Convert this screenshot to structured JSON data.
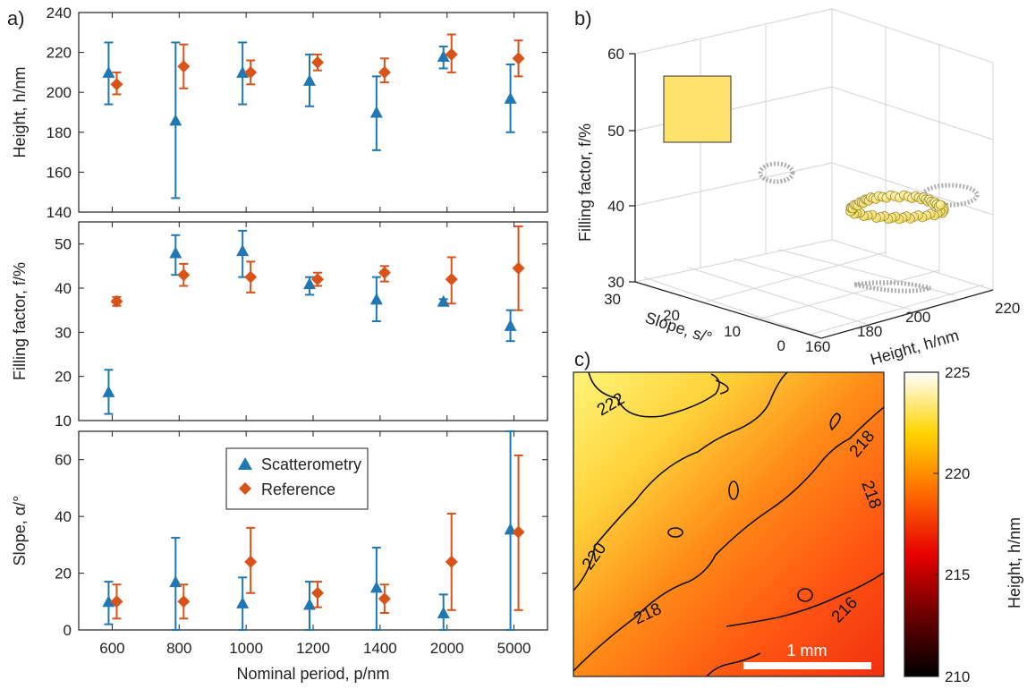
{
  "panel_labels": {
    "a": "a)",
    "b": "b)",
    "c": "c)"
  },
  "colors": {
    "scatterometry": "#1f77b4",
    "reference": "#d95319",
    "ghost": "#b0b0b0",
    "ball_fill": "#ffe680",
    "ball_edge": "#8a7a20"
  },
  "chart_data": [
    {
      "type": "scatter",
      "title": "",
      "ylabel": "Height, h/nm",
      "ylim": [
        140,
        240
      ],
      "yticks": [
        140,
        160,
        180,
        200,
        220,
        240
      ],
      "categories": [
        "600",
        "800",
        "1000",
        "1200",
        "1400",
        "2000",
        "5000"
      ],
      "series": [
        {
          "name": "Scatterometry",
          "values": [
            210,
            186,
            210,
            206,
            190,
            218,
            197
          ],
          "err_low": [
            194,
            147,
            194,
            193,
            171,
            212,
            180
          ],
          "err_high": [
            225,
            225,
            225,
            219,
            208,
            223,
            214
          ]
        },
        {
          "name": "Reference",
          "values": [
            204,
            213,
            210,
            215,
            210,
            219,
            217
          ],
          "err_low": [
            199,
            202,
            204,
            211,
            205,
            210,
            208
          ],
          "err_high": [
            210,
            224,
            216,
            219,
            217,
            229,
            226
          ]
        }
      ]
    },
    {
      "type": "scatter",
      "title": "",
      "ylabel": "Filling factor, f/%",
      "ylim": [
        10,
        55
      ],
      "yticks": [
        10,
        20,
        30,
        40,
        50
      ],
      "categories": [
        "600",
        "800",
        "1000",
        "1200",
        "1400",
        "2000",
        "5000"
      ],
      "series": [
        {
          "name": "Scatterometry",
          "values": [
            16.5,
            48,
            48.5,
            41,
            37.5,
            37,
            31.5
          ],
          "err_low": [
            11.5,
            43,
            42.5,
            38.5,
            32.5,
            36.5,
            28
          ],
          "err_high": [
            21.5,
            52,
            53,
            42.5,
            42.5,
            37.5,
            35
          ]
        },
        {
          "name": "Reference",
          "values": [
            37,
            43,
            42.5,
            42,
            43.5,
            42,
            44.5
          ],
          "err_low": [
            36,
            40.5,
            39,
            40.5,
            41.5,
            36.5,
            35
          ],
          "err_high": [
            38,
            45.5,
            46,
            43.5,
            45,
            47,
            54
          ]
        }
      ]
    },
    {
      "type": "scatter",
      "title": "",
      "xlabel": "Nominal period, p/nm",
      "ylabel": "Slope, α/°",
      "ylim": [
        0,
        70
      ],
      "yticks": [
        0,
        20,
        40,
        60
      ],
      "categories": [
        "600",
        "800",
        "1000",
        "1200",
        "1400",
        "2000",
        "5000"
      ],
      "legend_position": "top-center",
      "series": [
        {
          "name": "Scatterometry",
          "marker": "triangle",
          "values": [
            10,
            17,
            9.5,
            9,
            15,
            6,
            35.5
          ],
          "err_low": [
            2,
            0,
            0,
            0,
            0,
            0,
            0
          ],
          "err_high": [
            17,
            32.5,
            18.5,
            17,
            29,
            12.5,
            70
          ]
        },
        {
          "name": "Reference",
          "marker": "diamond",
          "values": [
            10,
            10,
            24,
            13,
            11,
            24,
            34.5
          ],
          "err_low": [
            4,
            4,
            13,
            8,
            6,
            7,
            7
          ],
          "err_high": [
            16,
            16,
            36,
            17,
            16,
            41,
            61.5
          ]
        }
      ]
    },
    {
      "type": "scatter",
      "subtype": "3d",
      "title": "",
      "xlabel": "Height, h/nm",
      "ylabel": "Slope, s/°",
      "zlabel": "Filling factor, f/%",
      "xlim": [
        160,
        220
      ],
      "xticks": [
        160,
        180,
        200,
        220
      ],
      "ylim": [
        0,
        30
      ],
      "yticks": [
        0,
        10,
        20,
        30
      ],
      "zlim": [
        30,
        60
      ],
      "zticks": [
        30,
        40,
        50,
        60
      ],
      "grid": true,
      "cluster": {
        "height_range": [
          205,
          222
        ],
        "slope_range": [
          0,
          5
        ],
        "filling_range": [
          39,
          42
        ]
      }
    },
    {
      "type": "heatmap",
      "title": "",
      "colorbar_label": "Height, h/nm",
      "colorbar_range": [
        210,
        225
      ],
      "colorbar_ticks": [
        210,
        215,
        220,
        225
      ],
      "contour_labels": [
        "222",
        "220",
        "218",
        "218",
        "218",
        "216"
      ],
      "scale_bar": "1 mm"
    }
  ]
}
